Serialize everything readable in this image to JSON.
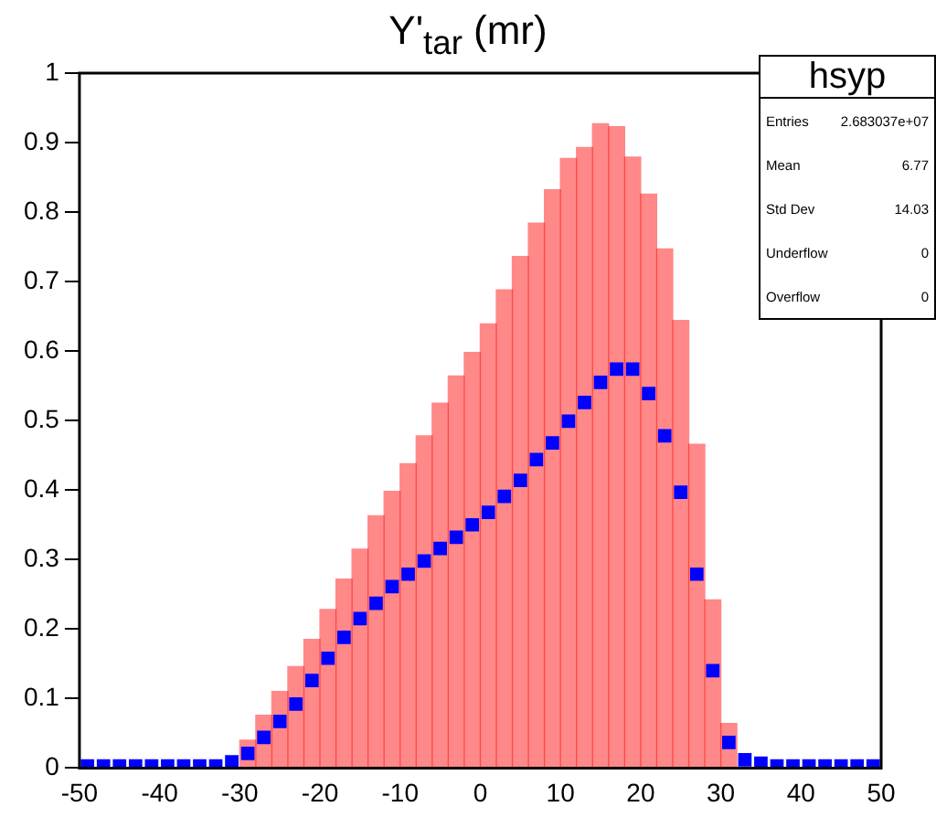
{
  "chart_data": {
    "type": "histogram",
    "title": "Y'$_{tar}$ (mr)",
    "bins": [
      -50,
      -48,
      -46,
      -44,
      -42,
      -40,
      -38,
      -36,
      -34,
      -32,
      -30,
      -28,
      -26,
      -24,
      -22,
      -20,
      -18,
      -16,
      -14,
      -12,
      -10,
      -8,
      -6,
      -4,
      -2,
      0,
      2,
      4,
      6,
      8,
      10,
      12,
      14,
      16,
      18,
      20,
      22,
      24,
      26,
      28,
      30,
      32,
      34,
      36,
      38,
      40,
      42,
      44,
      46,
      48,
      50
    ],
    "series": [
      {
        "color": "#ff0000",
        "values": [
          null,
          null,
          null,
          null,
          null,
          null,
          null,
          null,
          null,
          null,
          0.04,
          0.076,
          0.11,
          0.146,
          0.185,
          0.228,
          0.272,
          0.315,
          0.363,
          0.398,
          0.438,
          0.478,
          0.525,
          0.564,
          0.598,
          0.639,
          0.688,
          0.736,
          0.784,
          0.832,
          0.877,
          0.893,
          0.927,
          0.923,
          0.879,
          0.826,
          0.747,
          0.644,
          0.466,
          0.242,
          0.064,
          null,
          null,
          null,
          null,
          null,
          null,
          null,
          null,
          null
        ]
      },
      {
        "type": "scatter",
        "color": "#0000ff",
        "x": [
          -49,
          -47,
          -45,
          -43,
          -41,
          -39,
          -37,
          -35,
          -33,
          -31,
          -29,
          -27,
          -25,
          -23,
          -21,
          -19,
          -17,
          -15,
          -13,
          -11,
          -9,
          -7,
          -5,
          -3,
          -1,
          1,
          3,
          5,
          7,
          9,
          11,
          13,
          15,
          17,
          19,
          21,
          23,
          25,
          27,
          29,
          31,
          33,
          35,
          37,
          39,
          41,
          43,
          45,
          47,
          49
        ],
        "values": [
          0.003,
          0.003,
          0.003,
          0.003,
          0.003,
          0.003,
          0.003,
          0.003,
          0.003,
          0.009,
          0.021,
          0.044,
          0.067,
          0.092,
          0.126,
          0.158,
          0.188,
          0.215,
          0.237,
          0.261,
          0.279,
          0.298,
          0.316,
          0.332,
          0.35,
          0.368,
          0.391,
          0.414,
          0.444,
          0.468,
          0.499,
          0.526,
          0.555,
          0.574,
          0.574,
          0.539,
          0.478,
          0.397,
          0.279,
          0.14,
          0.037,
          0.012,
          0.007,
          0.003,
          0.003,
          0.003,
          0.003,
          0.003,
          0.003,
          0.003
        ]
      }
    ],
    "marker": "square",
    "legend": false,
    "grid": false,
    "xlim": [
      -50,
      50
    ],
    "xticks": [
      -50,
      -40,
      -30,
      -20,
      -10,
      0,
      10,
      20,
      30,
      40,
      50
    ],
    "ylim": [
      0,
      1
    ],
    "yticks": [
      0,
      0.1,
      0.2,
      0.3,
      0.4,
      0.5,
      0.6,
      0.7,
      0.8,
      0.9,
      1
    ],
    "annotations": [
      "hsyp",
      "Entries",
      "2.683037e+07",
      "Mean",
      "6.77",
      "Std Dev",
      "14.03",
      "Underflow",
      "0",
      "Overflow",
      "0"
    ]
  }
}
